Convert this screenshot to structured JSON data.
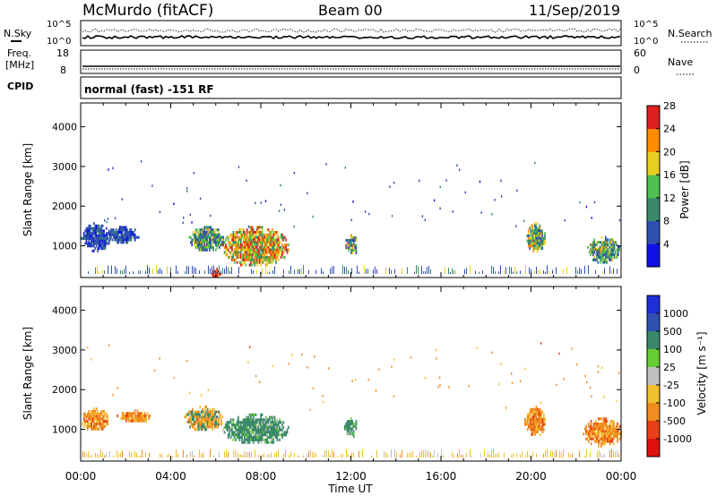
{
  "header": {
    "station": "McMurdo (fitACF)",
    "beam": "Beam 00",
    "date": "11/Sep/2019"
  },
  "noise_panel": {
    "left_label": "N.Sky",
    "right_label": "N.Search",
    "top_tick": "10^5",
    "bottom_tick": "10^0",
    "right_top_tick": "10^5",
    "right_bottom_tick": "10^0"
  },
  "freq_panel": {
    "left_label_1": "Freq.",
    "left_label_2": "[MHz]",
    "right_label": "Nave",
    "left_ticks": [
      "18",
      "8"
    ],
    "right_ticks": [
      "60",
      "0"
    ]
  },
  "cpid_panel": {
    "label": "CPID",
    "text": "normal (fast) -151 RF"
  },
  "chart_data": [
    {
      "type": "heatmap",
      "panel": "power",
      "ylabel": "Slant Range [km]",
      "yticks": [
        "1000",
        "2000",
        "3000",
        "4000"
      ],
      "ylim": [
        200,
        4600
      ],
      "xlim": [
        "00:00",
        "24:00"
      ],
      "colorbar_label": "Power [dB]",
      "colorbar_ticks": [
        "4",
        "8",
        "12",
        "16",
        "20",
        "24",
        "28"
      ],
      "colors": [
        "#1010e8",
        "#3050b0",
        "#3a8a6a",
        "#50c050",
        "#e8d020",
        "#ff8c00",
        "#e02020"
      ],
      "regions": [
        {
          "t0": 0.0,
          "t1": 1.3,
          "r0": 900,
          "r1": 1600,
          "level": "low"
        },
        {
          "t0": 1.1,
          "t1": 2.6,
          "r0": 1100,
          "r1": 1500,
          "level": "low"
        },
        {
          "t0": 4.8,
          "t1": 6.4,
          "r0": 900,
          "r1": 1500,
          "level": "mid"
        },
        {
          "t0": 6.3,
          "t1": 9.2,
          "r0": 500,
          "r1": 1500,
          "level": "high"
        },
        {
          "t0": 5.8,
          "t1": 6.2,
          "r0": 200,
          "r1": 450,
          "level": "peak"
        },
        {
          "t0": 11.7,
          "t1": 12.3,
          "r0": 800,
          "r1": 1300,
          "level": "mid"
        },
        {
          "t0": 19.8,
          "t1": 20.6,
          "r0": 850,
          "r1": 1600,
          "level": "mid"
        },
        {
          "t0": 22.5,
          "t1": 23.9,
          "r0": 600,
          "r1": 1250,
          "level": "mid"
        }
      ]
    },
    {
      "type": "heatmap",
      "panel": "velocity",
      "ylabel": "Slant Range [km]",
      "yticks": [
        "1000",
        "2000",
        "3000",
        "4000"
      ],
      "ylim": [
        200,
        4600
      ],
      "xlim": [
        "00:00",
        "24:00"
      ],
      "xticks": [
        "00:00",
        "04:00",
        "08:00",
        "12:00",
        "16:00",
        "20:00",
        "00:00"
      ],
      "xlabel": "Time UT",
      "colorbar_label": "Velocity [m s⁻¹]",
      "colorbar_ticks": [
        "1000",
        "500",
        "100",
        "25",
        "-25",
        "-100",
        "-500",
        "-1000"
      ],
      "colors": [
        "#1f2fd8",
        "#3050b0",
        "#3a8a6a",
        "#66cc33",
        "#c0c0c0",
        "#f0c030",
        "#f08c20",
        "#e84018",
        "#e01010"
      ],
      "regions": [
        {
          "t0": 0.0,
          "t1": 1.2,
          "r0": 1000,
          "r1": 1550,
          "vel": "neg"
        },
        {
          "t0": 1.6,
          "t1": 3.1,
          "r0": 1200,
          "r1": 1500,
          "vel": "neg"
        },
        {
          "t0": 4.6,
          "t1": 6.3,
          "r0": 1000,
          "r1": 1600,
          "vel": "mix"
        },
        {
          "t0": 6.3,
          "t1": 9.2,
          "r0": 650,
          "r1": 1400,
          "vel": "pos"
        },
        {
          "t0": 11.7,
          "t1": 12.3,
          "r0": 850,
          "r1": 1300,
          "vel": "pos"
        },
        {
          "t0": 19.7,
          "t1": 20.6,
          "r0": 850,
          "r1": 1600,
          "vel": "neg"
        },
        {
          "t0": 22.3,
          "t1": 24.0,
          "r0": 600,
          "r1": 1300,
          "vel": "neg"
        }
      ]
    }
  ]
}
